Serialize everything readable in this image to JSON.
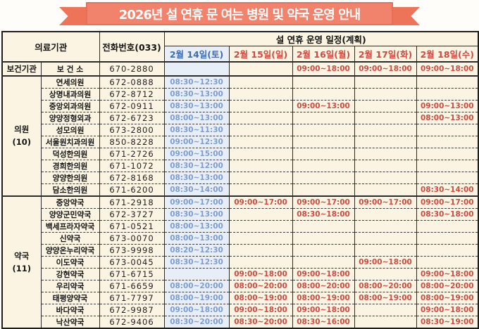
{
  "banner": {
    "title": "2026년 설 연휴 문 여는 병원 및 약국 운영 안내"
  },
  "colors": {
    "banner_bg": "#F1826B",
    "banner_text": "#FFFFFF",
    "paper_bg": "#FBF4E2",
    "saturday_bg": "#E8EEF7",
    "sat_header_text": "#3E6CB3",
    "sat_time_text": "#7D9DD2",
    "holiday_text": "#CE4B42"
  },
  "table": {
    "headers": {
      "org": "의료기관",
      "phone": "전화번호(033)",
      "schedule": "설 연휴 운영 일정(계획)",
      "dates": [
        {
          "label": "2월 14일(토)",
          "style": "saturday"
        },
        {
          "label": "2월 15일(일)",
          "style": "holiday"
        },
        {
          "label": "2월 16일(월)",
          "style": "holiday"
        },
        {
          "label": "2월 17일(화)",
          "style": "holiday"
        },
        {
          "label": "2월 18일(수)",
          "style": "holiday"
        }
      ]
    },
    "groups": [
      {
        "category": "보건기관",
        "count": "",
        "rows": [
          {
            "name": "보 건 소",
            "phone": "670-2880",
            "times": [
              "",
              "",
              "09:00~18:00",
              "09:00~18:00",
              "09:00~18:00"
            ]
          }
        ]
      },
      {
        "category": "의원",
        "count": "(10)",
        "rows": [
          {
            "name": "연세의원",
            "phone": "672-0888",
            "times": [
              "08:30~12:30",
              "",
              "",
              "",
              ""
            ]
          },
          {
            "name": "상명내과의원",
            "phone": "672-8712",
            "times": [
              "08:30~13:00",
              "",
              "",
              "",
              ""
            ]
          },
          {
            "name": "중앙외과의원",
            "phone": "672-0911",
            "times": [
              "08:30~13:00",
              "",
              "09:00~13:00",
              "",
              "09:00~13:00"
            ]
          },
          {
            "name": "양양정형외과",
            "phone": "672-6723",
            "times": [
              "08:00~13:00",
              "",
              "",
              "",
              "08:00~13:00"
            ]
          },
          {
            "name": "성모의원",
            "phone": "673-2800",
            "times": [
              "08:30~11:30",
              "",
              "",
              "",
              ""
            ]
          },
          {
            "name": "서울원치과의원",
            "phone": "850-8228",
            "times": [
              "09:00~12:30",
              "",
              "",
              "",
              ""
            ]
          },
          {
            "name": "덕성한의원",
            "phone": "671-2726",
            "times": [
              "09:00~15:00",
              "",
              "",
              "",
              ""
            ]
          },
          {
            "name": "경희한의원",
            "phone": "671-1072",
            "times": [
              "08:30~12:00",
              "",
              "",
              "",
              ""
            ]
          },
          {
            "name": "양양한의원",
            "phone": "672-8168",
            "times": [
              "08:30~13:00",
              "",
              "",
              "",
              ""
            ]
          },
          {
            "name": "담소한의원",
            "phone": "671-6200",
            "times": [
              "08:30~14:00",
              "",
              "",
              "",
              "08:30~14:00"
            ]
          }
        ]
      },
      {
        "category": "약국",
        "count": "(11)",
        "rows": [
          {
            "name": "중앙약국",
            "phone": "671-2918",
            "times": [
              "09:00~17:00",
              "09:00~17:00",
              "09:00~17:00",
              "09:00~17:00",
              "09:00~17:00"
            ]
          },
          {
            "name": "양양군민약국",
            "phone": "672-3727",
            "times": [
              "08:30~13:00",
              "",
              "08:30~18:00",
              "",
              "08:30~18:00"
            ]
          },
          {
            "name": "백세프라자약국",
            "phone": "671-0521",
            "times": [
              "08:00~13:00",
              "",
              "",
              "",
              ""
            ]
          },
          {
            "name": "신약국",
            "phone": "673-0070",
            "times": [
              "08:00~13:00",
              "",
              "",
              "",
              ""
            ]
          },
          {
            "name": "양양온누리약국",
            "phone": "673-9998",
            "times": [
              "08:20~12:30",
              "",
              "",
              "",
              ""
            ]
          },
          {
            "name": "이도약국",
            "phone": "673-0045",
            "times": [
              "08:30~12:30",
              "",
              "",
              "09:00~18:00",
              ""
            ]
          },
          {
            "name": "강현약국",
            "phone": "671-6715",
            "times": [
              "",
              "09:00~18:00",
              "09:00~18:00",
              "",
              "09:00~18:00"
            ]
          },
          {
            "name": "우리약국",
            "phone": "671-6659",
            "times": [
              "08:00~20:00",
              "08:00~20:00",
              "08:00~20:00",
              "08:00~20:00",
              "08:00~20:00"
            ]
          },
          {
            "name": "태평양약국",
            "phone": "671-7797",
            "times": [
              "08:00~19:00",
              "08:00~19:00",
              "08:00~19:00",
              "08:00~19:00",
              "08:00~19:00"
            ]
          },
          {
            "name": "바다약국",
            "phone": "672-9987",
            "times": [
              "09:00~18:00",
              "09:00~18:00",
              "09:00~18:00",
              "",
              "09:00~18:00"
            ]
          },
          {
            "name": "낙산약국",
            "phone": "672-9406",
            "times": [
              "08:30~20:00",
              "08:30~20:00",
              "08:30~16:00",
              "",
              "08:30~19:00"
            ]
          }
        ]
      }
    ]
  }
}
